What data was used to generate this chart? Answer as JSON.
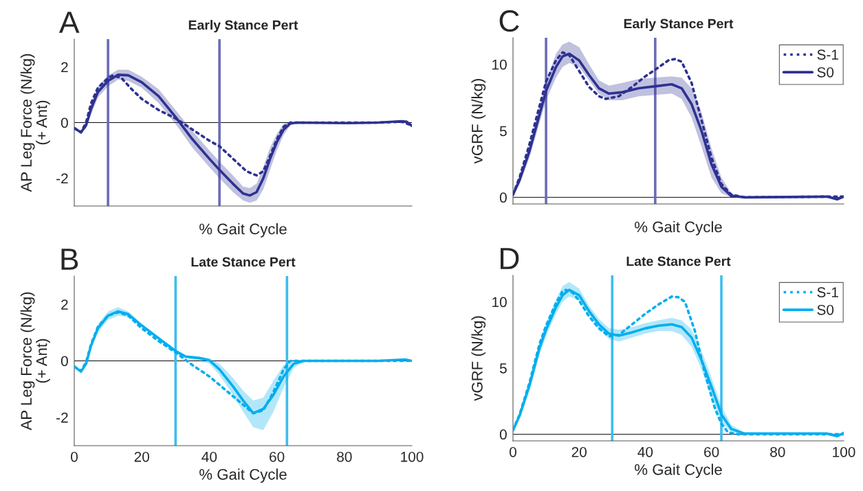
{
  "chart_data": [
    {
      "type": "line",
      "title": "Early Stance Pert",
      "xlabel": "% Gait Cycle",
      "ylabel": "AP Leg Force (N/kg)\n(+ Ant)",
      "annotations": [
        "A"
      ],
      "xlim": [
        0,
        100
      ],
      "ylim": [
        -3,
        3
      ],
      "yticks": [
        -2,
        0,
        2
      ],
      "tick_labels": "y",
      "ref_lines": [
        {
          "axis": "y",
          "value": 0,
          "color": "#000000"
        },
        {
          "axis": "x",
          "value": 10,
          "color": "#6a6cb5"
        },
        {
          "axis": "x",
          "value": 43,
          "color": "#6a6cb5"
        }
      ],
      "series": [
        {
          "color": "#2e3192",
          "line_style": "dotted",
          "x": [
            0,
            2,
            3.5,
            5,
            7,
            10,
            11.5,
            14,
            17,
            20,
            25,
            30,
            35,
            40,
            43,
            47,
            51,
            54,
            56,
            58,
            60,
            62,
            64,
            80,
            90,
            97,
            100
          ],
          "values": [
            -0.2,
            -0.35,
            0,
            0.7,
            1.25,
            1.6,
            1.7,
            1.6,
            1.2,
            0.85,
            0.45,
            0.15,
            -0.25,
            -0.65,
            -0.85,
            -1.3,
            -1.75,
            -1.9,
            -1.75,
            -1.2,
            -0.6,
            -0.15,
            0,
            0,
            0,
            0.03,
            -0.1
          ]
        },
        {
          "color": "#2e3192",
          "line_style": "solid",
          "x": [
            0,
            2,
            3.5,
            5,
            7,
            10,
            13,
            16,
            20,
            25,
            30,
            35,
            40,
            43,
            47,
            50,
            52,
            54,
            56,
            58,
            60,
            62,
            64,
            66,
            80,
            90,
            97,
            98.5,
            100
          ],
          "values": [
            -0.2,
            -0.35,
            -0.1,
            0.5,
            1.1,
            1.5,
            1.72,
            1.7,
            1.45,
            0.95,
            0.2,
            -0.6,
            -1.3,
            -1.7,
            -2.2,
            -2.55,
            -2.62,
            -2.5,
            -2.0,
            -1.3,
            -0.7,
            -0.25,
            -0.03,
            0,
            -0.02,
            0,
            0.05,
            0.03,
            -0.12
          ],
          "lower": [
            -0.2,
            -0.35,
            -0.2,
            0.3,
            0.9,
            1.3,
            1.55,
            1.5,
            1.25,
            0.7,
            -0.05,
            -0.9,
            -1.6,
            -2.0,
            -2.5,
            -2.8,
            -2.88,
            -2.8,
            -2.4,
            -1.7,
            -1.0,
            -0.45,
            -0.1,
            -0.02,
            -0.02,
            0,
            0.05,
            0.03,
            -0.12
          ],
          "upper": [
            -0.2,
            -0.35,
            0,
            0.7,
            1.3,
            1.7,
            1.9,
            1.9,
            1.65,
            1.2,
            0.45,
            -0.3,
            -1.0,
            -1.4,
            -1.9,
            -2.3,
            -2.35,
            -2.2,
            -1.6,
            -0.9,
            -0.4,
            -0.05,
            0.03,
            0.02,
            -0.02,
            0,
            0.05,
            0.03,
            -0.12
          ]
        }
      ]
    },
    {
      "type": "line",
      "title": "Early Stance Pert",
      "xlabel": "% Gait Cycle",
      "ylabel": "vGRF (N/kg)",
      "annotations": [
        "C"
      ],
      "xlim": [
        0,
        100
      ],
      "ylim": [
        -0.5,
        12
      ],
      "yticks": [
        0,
        5,
        10
      ],
      "tick_labels": "y",
      "legend": "top right",
      "ref_lines": [
        {
          "axis": "y",
          "value": 0,
          "color": "#000000"
        },
        {
          "axis": "x",
          "value": 10,
          "color": "#6a6cb5"
        },
        {
          "axis": "x",
          "value": 43,
          "color": "#6a6cb5"
        }
      ],
      "series": [
        {
          "name": "S-1",
          "color": "#2e3192",
          "line_style": "dotted",
          "x": [
            0,
            2,
            5,
            7,
            10,
            13,
            15,
            17,
            20,
            23,
            26,
            28,
            32,
            36,
            40,
            43,
            47,
            49,
            51,
            54,
            57,
            60,
            63,
            66,
            70,
            95,
            100
          ],
          "values": [
            0.2,
            1.5,
            4.0,
            5.9,
            8.7,
            10.3,
            10.9,
            10.7,
            9.5,
            8.3,
            7.6,
            7.4,
            7.6,
            8.3,
            9.1,
            9.6,
            10.3,
            10.4,
            10.2,
            8.6,
            5.8,
            3.0,
            1.0,
            0.2,
            0,
            0.05,
            0.05
          ]
        },
        {
          "name": "S0",
          "color": "#2e3192",
          "line_style": "solid",
          "x": [
            0,
            2,
            5,
            7,
            10,
            13,
            15,
            17,
            20,
            23,
            26,
            29,
            33,
            38,
            43,
            48,
            51,
            54,
            57,
            60,
            63,
            66,
            70,
            95,
            98,
            100
          ],
          "values": [
            0.2,
            1.3,
            3.5,
            5.3,
            8.0,
            9.8,
            10.6,
            10.8,
            10.3,
            9.2,
            8.2,
            7.8,
            7.9,
            8.2,
            8.35,
            8.5,
            8.2,
            7.0,
            5.0,
            2.5,
            0.8,
            0.1,
            0,
            0.05,
            -0.15,
            0.05
          ],
          "lower": [
            0.2,
            1.0,
            3.0,
            4.7,
            7.3,
            9.0,
            9.8,
            10.1,
            9.8,
            8.8,
            7.8,
            7.3,
            7.3,
            7.6,
            7.7,
            7.8,
            7.4,
            6.0,
            3.8,
            1.5,
            0.3,
            0,
            0,
            0.05,
            -0.15,
            0.05
          ],
          "upper": [
            0.2,
            1.6,
            4.0,
            5.9,
            8.7,
            10.8,
            11.5,
            11.7,
            11.3,
            10.0,
            8.8,
            8.4,
            8.6,
            8.9,
            9.0,
            9.1,
            9.0,
            8.2,
            6.4,
            3.7,
            1.5,
            0.3,
            0.05,
            0.05,
            -0.15,
            0.05
          ]
        }
      ]
    },
    {
      "type": "line",
      "title": "Late Stance Pert",
      "xlabel": "% Gait Cycle",
      "ylabel": "AP Leg Force (N/kg)\n(+ Ant)",
      "annotations": [
        "B"
      ],
      "xlim": [
        0,
        100
      ],
      "ylim": [
        -3,
        3
      ],
      "xticks": [
        0,
        20,
        40,
        60,
        80,
        100
      ],
      "yticks": [
        -2,
        0,
        2
      ],
      "ref_lines": [
        {
          "axis": "y",
          "value": 0,
          "color": "#000000"
        },
        {
          "axis": "x",
          "value": 30,
          "color": "#3dbdee"
        },
        {
          "axis": "x",
          "value": 63,
          "color": "#3dbdee"
        }
      ],
      "series": [
        {
          "color": "#00aeef",
          "line_style": "dotted",
          "x": [
            0,
            2,
            3.5,
            5,
            7,
            10,
            13,
            16,
            20,
            25,
            30,
            35,
            40,
            45,
            50,
            53,
            56,
            59,
            62,
            64,
            100
          ],
          "values": [
            -0.2,
            -0.35,
            -0.05,
            0.6,
            1.2,
            1.6,
            1.72,
            1.6,
            1.15,
            0.7,
            0.3,
            -0.15,
            -0.55,
            -1.05,
            -1.55,
            -1.85,
            -1.75,
            -1.1,
            -0.3,
            0,
            0
          ]
        },
        {
          "color": "#00aeef",
          "line_style": "solid",
          "x": [
            0,
            2,
            3.5,
            5,
            7,
            10,
            13,
            16,
            20,
            25,
            30,
            33,
            37,
            40,
            43,
            47,
            50,
            53,
            56,
            59,
            62,
            65,
            68,
            80,
            90,
            98,
            100
          ],
          "values": [
            -0.2,
            -0.38,
            -0.1,
            0.55,
            1.15,
            1.6,
            1.75,
            1.65,
            1.25,
            0.8,
            0.35,
            0.15,
            0.1,
            0.02,
            -0.3,
            -0.9,
            -1.4,
            -1.85,
            -1.7,
            -1.2,
            -0.55,
            -0.1,
            0,
            0,
            0,
            0.05,
            0
          ],
          "lower": [
            -0.2,
            -0.38,
            -0.15,
            0.45,
            1.0,
            1.45,
            1.6,
            1.55,
            1.2,
            0.75,
            0.3,
            0.1,
            0.0,
            -0.1,
            -0.5,
            -1.2,
            -1.8,
            -2.35,
            -2.45,
            -1.8,
            -0.95,
            -0.25,
            -0.03,
            0,
            0,
            0.05,
            0
          ],
          "upper": [
            -0.2,
            -0.38,
            -0.05,
            0.65,
            1.3,
            1.75,
            1.9,
            1.75,
            1.3,
            0.85,
            0.4,
            0.2,
            0.15,
            0.1,
            -0.1,
            -0.6,
            -1.05,
            -1.4,
            -1.3,
            -0.7,
            -0.15,
            0.05,
            0.03,
            0,
            0,
            0.05,
            0
          ]
        }
      ]
    },
    {
      "type": "line",
      "title": "Late Stance Pert",
      "xlabel": "% Gait Cycle",
      "ylabel": "vGRF (N/kg)",
      "annotations": [
        "D"
      ],
      "xlim": [
        0,
        100
      ],
      "ylim": [
        -0.5,
        12
      ],
      "xticks": [
        0,
        20,
        40,
        60,
        80,
        100
      ],
      "yticks": [
        0,
        5,
        10
      ],
      "legend": "top right",
      "ref_lines": [
        {
          "axis": "y",
          "value": 0,
          "color": "#000000"
        },
        {
          "axis": "x",
          "value": 30,
          "color": "#3dbdee"
        },
        {
          "axis": "x",
          "value": 63,
          "color": "#3dbdee"
        }
      ],
      "series": [
        {
          "name": "S-1",
          "color": "#00aeef",
          "line_style": "dotted",
          "x": [
            0,
            2,
            5,
            8,
            10,
            13,
            15,
            16,
            18,
            20,
            23,
            26,
            29,
            32,
            36,
            40,
            44,
            48,
            50,
            52,
            55,
            58,
            61,
            63,
            65,
            68,
            100
          ],
          "values": [
            0.3,
            1.5,
            3.9,
            6.8,
            8.2,
            9.9,
            10.8,
            10.9,
            10.7,
            10.1,
            8.9,
            8.0,
            7.4,
            7.5,
            8.3,
            9.1,
            9.8,
            10.4,
            10.35,
            10.0,
            7.8,
            4.6,
            2.0,
            0.8,
            0.15,
            0,
            0
          ]
        },
        {
          "name": "S0",
          "color": "#00aeef",
          "line_style": "solid",
          "x": [
            0,
            2,
            5,
            8,
            10,
            13,
            15,
            17,
            20,
            23,
            26,
            29,
            32,
            36,
            40,
            44,
            48,
            51,
            54,
            57,
            60,
            63,
            66,
            70,
            95,
            98,
            100
          ],
          "values": [
            0.3,
            1.4,
            3.7,
            6.5,
            7.9,
            9.6,
            10.5,
            10.9,
            10.5,
            9.3,
            8.3,
            7.6,
            7.45,
            7.7,
            8.0,
            8.2,
            8.3,
            8.1,
            7.3,
            5.6,
            3.6,
            1.5,
            0.4,
            0.05,
            0.05,
            -0.15,
            0.1
          ],
          "lower": [
            0.3,
            1.2,
            3.3,
            6.0,
            7.4,
            9.1,
            10.0,
            10.4,
            10.1,
            9.0,
            8.0,
            7.2,
            7.0,
            7.3,
            7.6,
            7.8,
            7.8,
            7.5,
            6.6,
            4.9,
            2.9,
            0.9,
            0.15,
            0,
            0.05,
            -0.15,
            0.1
          ],
          "upper": [
            0.3,
            1.6,
            4.1,
            7.0,
            8.4,
            10.2,
            11.2,
            11.5,
            11.0,
            9.7,
            8.7,
            8.0,
            7.9,
            8.1,
            8.4,
            8.6,
            8.8,
            8.6,
            7.9,
            6.3,
            4.3,
            2.1,
            0.7,
            0.1,
            0.05,
            -0.15,
            0.1
          ]
        }
      ]
    }
  ]
}
